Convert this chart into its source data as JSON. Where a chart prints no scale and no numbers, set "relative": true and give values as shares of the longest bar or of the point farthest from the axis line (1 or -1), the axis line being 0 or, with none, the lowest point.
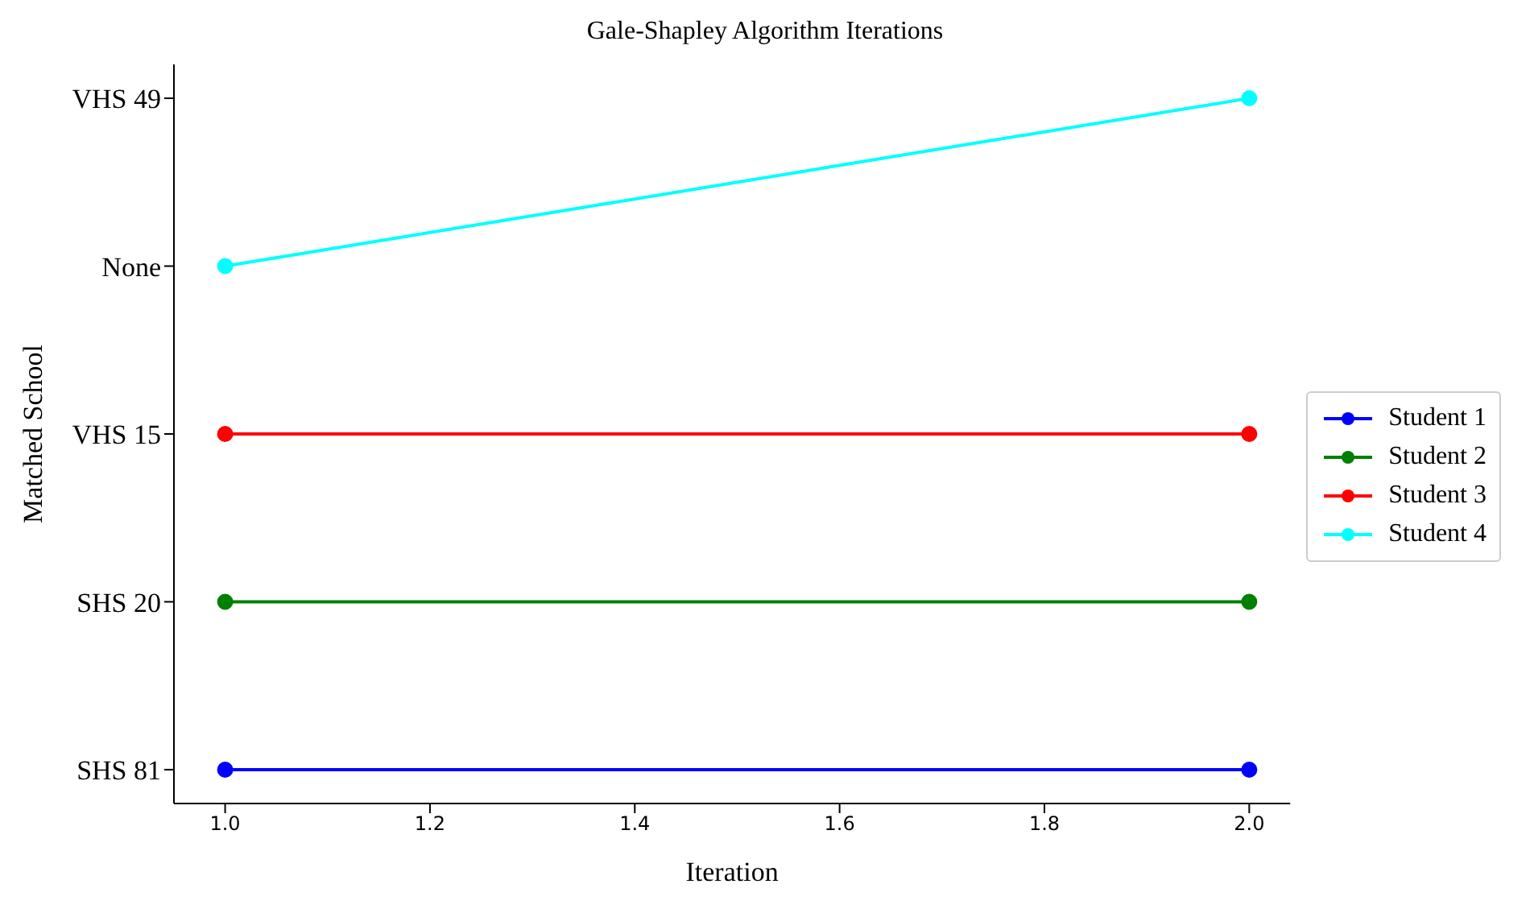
{
  "chart_data": {
    "type": "line",
    "title": "Gale-Shapley Algorithm Iterations",
    "xlabel": "Iteration",
    "ylabel": "Matched School",
    "x": [
      1,
      2
    ],
    "series": [
      {
        "name": "Student 1",
        "color": "#0000ff",
        "values": [
          0.048,
          0.048
        ]
      },
      {
        "name": "Student 2",
        "color": "#008000",
        "values": [
          0.286,
          0.286
        ]
      },
      {
        "name": "Student 3",
        "color": "#ff0000",
        "values": [
          0.524,
          0.524
        ]
      },
      {
        "name": "Student 4",
        "color": "#00ffff",
        "values": [
          0.762,
          1
        ]
      }
    ],
    "xlim": [
      0.95,
      2.04
    ],
    "xticks": [
      {
        "value": 1,
        "label": "1.0"
      },
      {
        "value": 1.2,
        "label": "1.2"
      },
      {
        "value": 1.4,
        "label": "1.4"
      },
      {
        "value": 1.6,
        "label": "1.6"
      },
      {
        "value": 1.8,
        "label": "1.8"
      },
      {
        "value": 2,
        "label": "2.0"
      }
    ],
    "relative": true,
    "y_categories": [
      "SHS 81",
      "SHS 20",
      "VHS 15",
      "None",
      "VHS 49"
    ],
    "marker": "circle",
    "line_style": "solid",
    "grid": false,
    "legend": "right"
  }
}
